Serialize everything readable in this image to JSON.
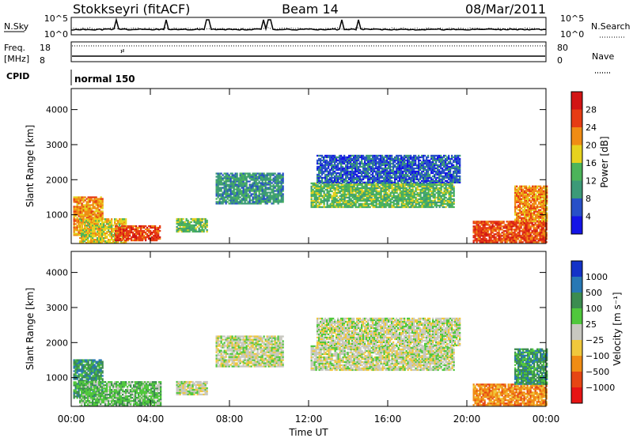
{
  "header": {
    "station": "Stokkseyri (fitACF)",
    "beam": "Beam 14",
    "date": "08/Mar/2011"
  },
  "strips": {
    "nsky_label": "N.Sky",
    "nsearch_label": "N.Search",
    "freq_label": "Freq.",
    "freq_unit": "[MHz]",
    "nave_label": "Nave",
    "cpid_label": "CPID",
    "cpid_value": "normal 150",
    "noise_ticks": [
      "10^5",
      "10^0"
    ],
    "freq_ticks": [
      "18",
      "8"
    ],
    "nave_ticks": [
      "80",
      "0"
    ]
  },
  "chart_data": [
    {
      "type": "heatmap",
      "panel": "power",
      "ylabel": "Slant Range [km]",
      "yticks": [
        "1000",
        "2000",
        "3000",
        "4000"
      ],
      "ylim": [
        180,
        4600
      ],
      "xlim": [
        0,
        24
      ],
      "colorbar_label": "Power [dB]",
      "colorbar_ticks": [
        "4",
        "8",
        "12",
        "16",
        "20",
        "24",
        "28"
      ],
      "colors": [
        "#1414e6",
        "#2850c8",
        "#3c9a78",
        "#4cb45a",
        "#e6d21e",
        "#f08c14",
        "#e63c14",
        "#d21414"
      ],
      "regions": [
        {
          "t0": 0.1,
          "t1": 1.6,
          "r0": 400,
          "r1": 1500,
          "level": 5
        },
        {
          "t0": 0.4,
          "t1": 2.8,
          "r0": 180,
          "r1": 900,
          "level": 4
        },
        {
          "t0": 2.2,
          "t1": 4.5,
          "r0": 250,
          "r1": 700,
          "level": 6
        },
        {
          "t0": 5.3,
          "t1": 6.9,
          "r0": 500,
          "r1": 900,
          "level": 3
        },
        {
          "t0": 7.3,
          "t1": 10.7,
          "r0": 1300,
          "r1": 2200,
          "level": 2
        },
        {
          "t0": 12.1,
          "t1": 19.3,
          "r0": 1200,
          "r1": 1900,
          "level": 3
        },
        {
          "t0": 12.4,
          "t1": 19.6,
          "r0": 1900,
          "r1": 2700,
          "level": 1
        },
        {
          "t0": 20.3,
          "t1": 24,
          "r0": 200,
          "r1": 800,
          "level": 6
        },
        {
          "t0": 22.4,
          "t1": 24,
          "r0": 800,
          "r1": 1800,
          "level": 5
        }
      ]
    },
    {
      "type": "heatmap",
      "panel": "velocity",
      "ylabel": "Slant Range [km]",
      "yticks": [
        "1000",
        "2000",
        "3000",
        "4000"
      ],
      "ylim": [
        180,
        4600
      ],
      "xlim": [
        0,
        24
      ],
      "xlabel": "Time UT",
      "xticks": [
        "00:00",
        "04:00",
        "08:00",
        "12:00",
        "16:00",
        "20:00",
        "00:00"
      ],
      "colorbar_label": "Velocity [m s⁻¹]",
      "colorbar_ticks": [
        "1000",
        "500",
        "100",
        "25",
        "−25",
        "−100",
        "−500",
        "−1000"
      ],
      "colors": [
        "#1432c8",
        "#2878b4",
        "#3c8c50",
        "#50c83c",
        "#c8c8c0",
        "#f0c83c",
        "#f08c14",
        "#e64614",
        "#e61414"
      ],
      "regions": [
        {
          "t0": 0.1,
          "t1": 1.6,
          "r0": 400,
          "r1": 1500,
          "level": 2
        },
        {
          "t0": 0.4,
          "t1": 4.5,
          "r0": 180,
          "r1": 900,
          "level": 3
        },
        {
          "t0": 5.3,
          "t1": 6.9,
          "r0": 500,
          "r1": 900,
          "level": 4
        },
        {
          "t0": 7.3,
          "t1": 10.7,
          "r0": 1300,
          "r1": 2200,
          "level": 4
        },
        {
          "t0": 12.1,
          "t1": 19.3,
          "r0": 1200,
          "r1": 1900,
          "level": 4
        },
        {
          "t0": 12.4,
          "t1": 19.6,
          "r0": 1900,
          "r1": 2700,
          "level": 4
        },
        {
          "t0": 20.3,
          "t1": 24,
          "r0": 200,
          "r1": 800,
          "level": 6
        },
        {
          "t0": 22.4,
          "t1": 24,
          "r0": 800,
          "r1": 1800,
          "level": 2
        }
      ]
    }
  ]
}
